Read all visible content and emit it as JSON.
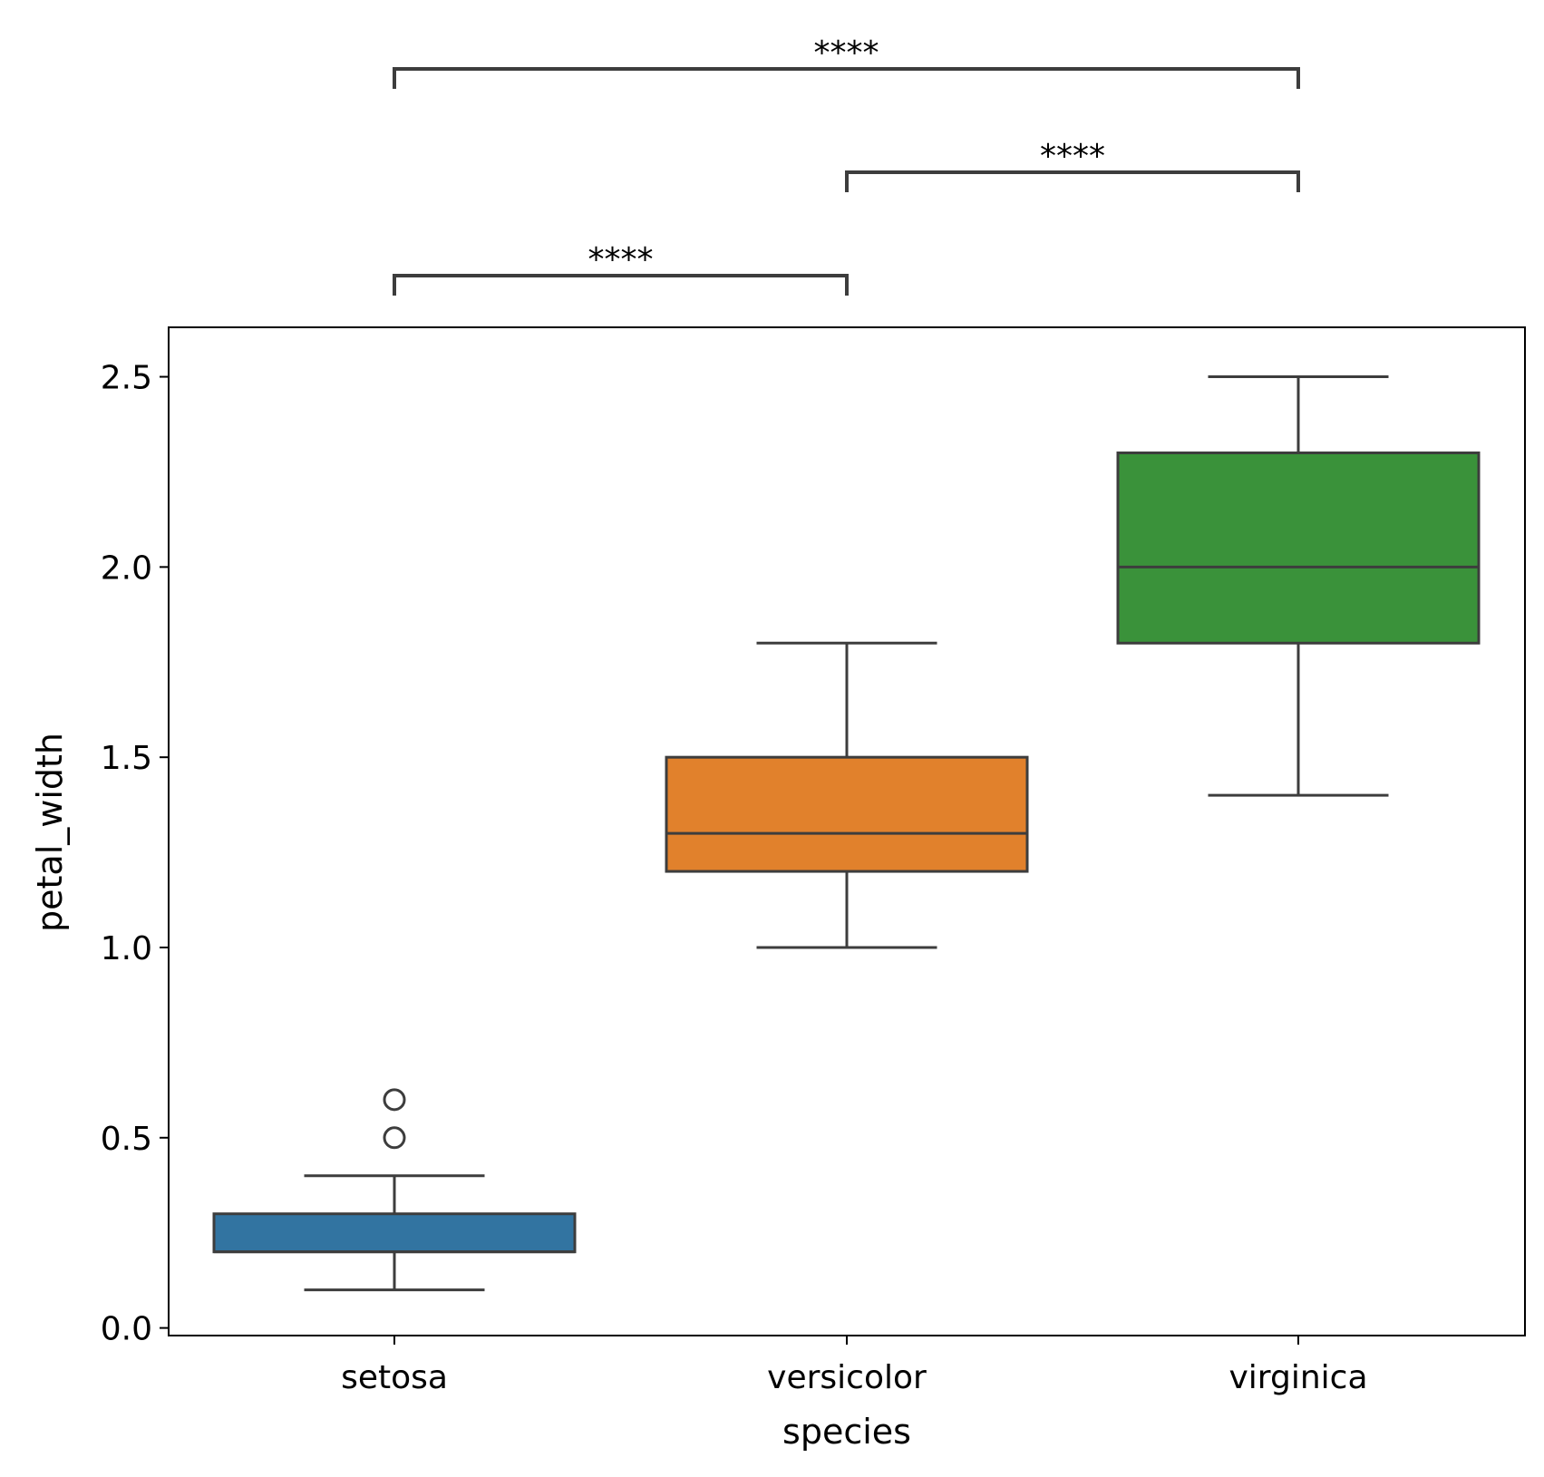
{
  "chart_data": {
    "type": "box",
    "xlabel": "species",
    "ylabel": "petal_width",
    "ylim": [
      -0.02,
      2.63
    ],
    "y_ticks": [
      "0.0",
      "0.5",
      "1.0",
      "1.5",
      "2.0",
      "2.5"
    ],
    "y_tick_values": [
      0.0,
      0.5,
      1.0,
      1.5,
      2.0,
      2.5
    ],
    "categories": [
      "setosa",
      "versicolor",
      "virginica"
    ],
    "boxes": [
      {
        "name": "setosa",
        "color": "#3274a1",
        "whisker_low": 0.1,
        "q1": 0.2,
        "median": 0.2,
        "q3": 0.3,
        "whisker_high": 0.4,
        "outliers": [
          0.5,
          0.6
        ]
      },
      {
        "name": "versicolor",
        "color": "#e1812c",
        "whisker_low": 1.0,
        "q1": 1.2,
        "median": 1.3,
        "q3": 1.5,
        "whisker_high": 1.8,
        "outliers": []
      },
      {
        "name": "virginica",
        "color": "#3a923a",
        "whisker_low": 1.4,
        "q1": 1.8,
        "median": 2.0,
        "q3": 2.3,
        "whisker_high": 2.5,
        "outliers": []
      }
    ],
    "annotations": [
      {
        "from": "setosa",
        "to": "versicolor",
        "label": "****",
        "level": 1
      },
      {
        "from": "versicolor",
        "to": "virginica",
        "label": "****",
        "level": 2
      },
      {
        "from": "setosa",
        "to": "virginica",
        "label": "****",
        "level": 3
      }
    ]
  }
}
